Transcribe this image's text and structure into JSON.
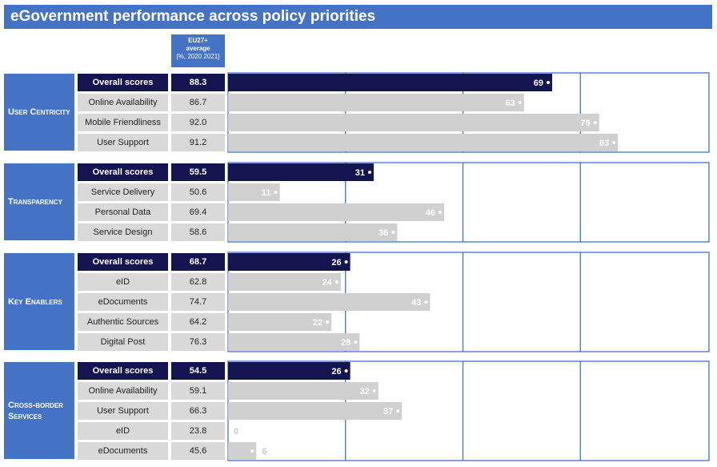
{
  "title": "eGovernment performance across policy priorities",
  "avg_header": {
    "line1": "EU27+",
    "line2": "average",
    "line3": "[%, 2020 2021]"
  },
  "colors": {
    "header": "#4472c4",
    "overall_bar": "#141450",
    "sub_bar": "#d0d0d0",
    "grid": "#4472c4"
  },
  "chart_data": {
    "type": "bar",
    "orientation": "horizontal",
    "xlim": [
      0,
      100
    ],
    "groups": [
      {
        "name": "User Centricity",
        "rows": [
          {
            "label": "Overall scores",
            "average": "88.3",
            "value": 69,
            "overall": true
          },
          {
            "label": "Online Availability",
            "average": "86.7",
            "value": 63,
            "overall": false
          },
          {
            "label": "Mobile Friendliness",
            "average": "92.0",
            "value": 79,
            "overall": false
          },
          {
            "label": "User Support",
            "average": "91.2",
            "value": 83,
            "overall": false
          }
        ]
      },
      {
        "name": "Transparency",
        "rows": [
          {
            "label": "Overall scores",
            "average": "59.5",
            "value": 31,
            "overall": true
          },
          {
            "label": "Service Delivery",
            "average": "50.6",
            "value": 11,
            "overall": false
          },
          {
            "label": "Personal Data",
            "average": "69.4",
            "value": 46,
            "overall": false
          },
          {
            "label": "Service Design",
            "average": "58.6",
            "value": 36,
            "overall": false
          }
        ]
      },
      {
        "name": "Key Enablers",
        "rows": [
          {
            "label": "Overall scores",
            "average": "68.7",
            "value": 26,
            "overall": true
          },
          {
            "label": "eID",
            "average": "62.8",
            "value": 24,
            "overall": false
          },
          {
            "label": "eDocuments",
            "average": "74.7",
            "value": 43,
            "overall": false
          },
          {
            "label": "Authentic Sources",
            "average": "64.2",
            "value": 22,
            "overall": false
          },
          {
            "label": "Digital Post",
            "average": "76.3",
            "value": 28,
            "overall": false
          }
        ]
      },
      {
        "name": "Cross-border Services",
        "rows": [
          {
            "label": "Overall scores",
            "average": "54.5",
            "value": 26,
            "overall": true
          },
          {
            "label": "Online Availability",
            "average": "59.1",
            "value": 32,
            "overall": false
          },
          {
            "label": "User Support",
            "average": "66.3",
            "value": 37,
            "overall": false
          },
          {
            "label": "eID",
            "average": "23.8",
            "value": 0,
            "overall": false
          },
          {
            "label": "eDocuments",
            "average": "45.6",
            "value": 6,
            "overall": false
          }
        ]
      }
    ]
  }
}
